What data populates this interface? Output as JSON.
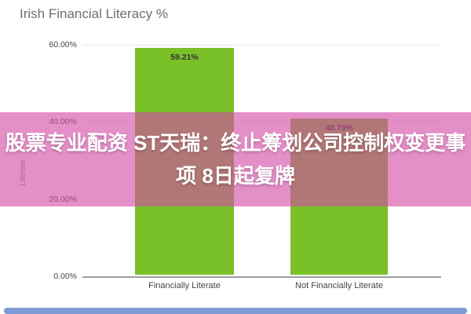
{
  "colors": {
    "bar": "#7ac029",
    "overlay": "rgba(211,74,166,0.62)",
    "scrollbar": "#7d99d6",
    "title_text": "#6f6f6f"
  },
  "chart": {
    "title": "Irish Financial Literacy %",
    "y_axis_label": "Literate"
  },
  "chart_data": {
    "type": "bar",
    "title": "Irish Financial Literacy %",
    "xlabel": "",
    "ylabel": "Literate",
    "categories": [
      "Financially Literate",
      "Not Financially Literate"
    ],
    "values": [
      59.21,
      40.79
    ],
    "value_labels": [
      "59.21%",
      "40.79%"
    ],
    "ylim": [
      0,
      60
    ],
    "yticks": [
      60,
      40,
      20,
      0
    ],
    "ytick_labels": [
      "60.00%",
      "40.00%",
      "20.00%",
      "0.00%"
    ],
    "grid": true,
    "legend": "none",
    "bar_color": "#7ac029"
  },
  "overlay": {
    "headline_lines": [
      "股票专业配资 ST天瑞：终止筹划公司控制权变更事",
      "项 8日起复牌"
    ],
    "text_color": "#ffffff"
  }
}
